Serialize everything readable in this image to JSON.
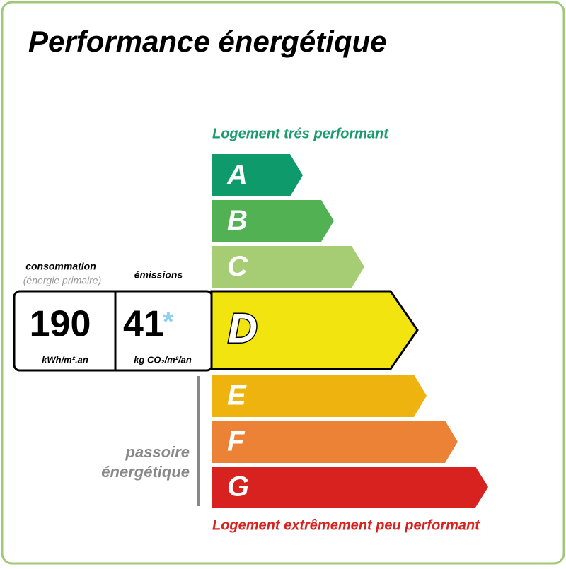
{
  "header": {
    "title": "Performance énergétique"
  },
  "scale": {
    "top_label": "Logement trés performant",
    "bottom_label": "Logement extrêmement peu performant",
    "top_color": "#1a9b6c",
    "bottom_color": "#d7221f",
    "current": "D",
    "classes": [
      {
        "letter": "A",
        "color": "#0f9a6c"
      },
      {
        "letter": "B",
        "color": "#52b153"
      },
      {
        "letter": "C",
        "color": "#a6cc74"
      },
      {
        "letter": "D",
        "color": "#f2e50f"
      },
      {
        "letter": "E",
        "color": "#efb30f"
      },
      {
        "letter": "F",
        "color": "#eb8235"
      },
      {
        "letter": "G",
        "color": "#d7221f"
      }
    ]
  },
  "consumption": {
    "label": "consommation",
    "sublabel": "(énergie primaire)",
    "value": "190",
    "unit": "kWh/m².an"
  },
  "emissions": {
    "label": "émissions",
    "value": "41",
    "marker": "*",
    "unit": "kg CO₂/m²/an"
  },
  "passoire": {
    "line1": "passoire",
    "line2": "énergétique"
  }
}
